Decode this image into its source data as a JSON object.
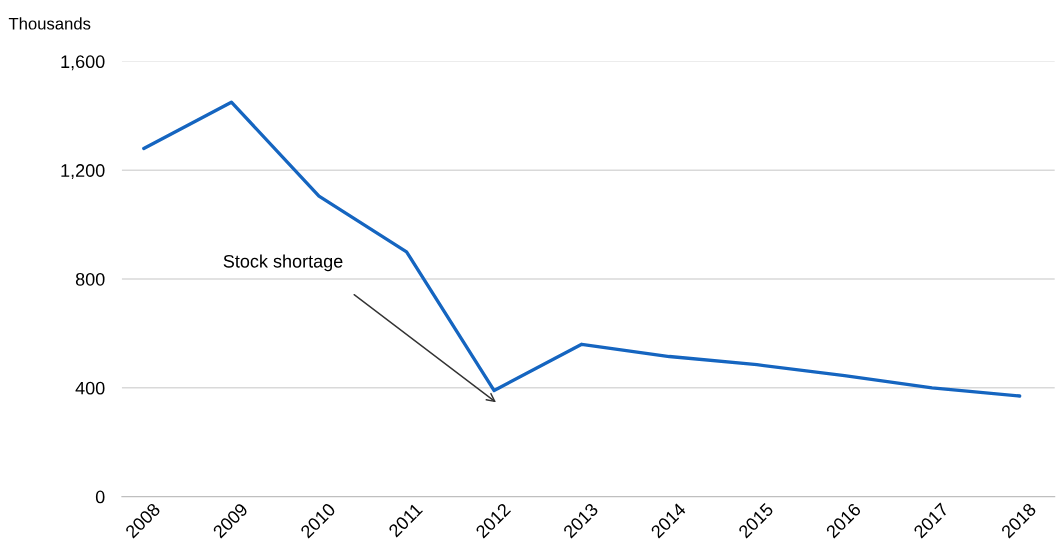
{
  "chart_data": {
    "type": "line",
    "ylabel": "Thousands",
    "categories": [
      "2008",
      "2009",
      "2010",
      "2011",
      "2012",
      "2013",
      "2014",
      "2015",
      "2016",
      "2017",
      "2018"
    ],
    "series": [
      {
        "color": "#1565c0",
        "values": [
          1280,
          1450,
          1105,
          900,
          390,
          560,
          515,
          485,
          445,
          400,
          370
        ]
      }
    ],
    "ylim": [
      0,
      1600
    ],
    "yticks": [
      {
        "value": 0,
        "label": "0"
      },
      {
        "value": 400,
        "label": "400"
      },
      {
        "value": 800,
        "label": "800"
      },
      {
        "value": 1200,
        "label": "1,200"
      },
      {
        "value": 1600,
        "label": "1,600"
      }
    ],
    "grid": "y",
    "marker": "none",
    "line_style": "solid",
    "annotations": [
      "Stock shortage"
    ]
  }
}
